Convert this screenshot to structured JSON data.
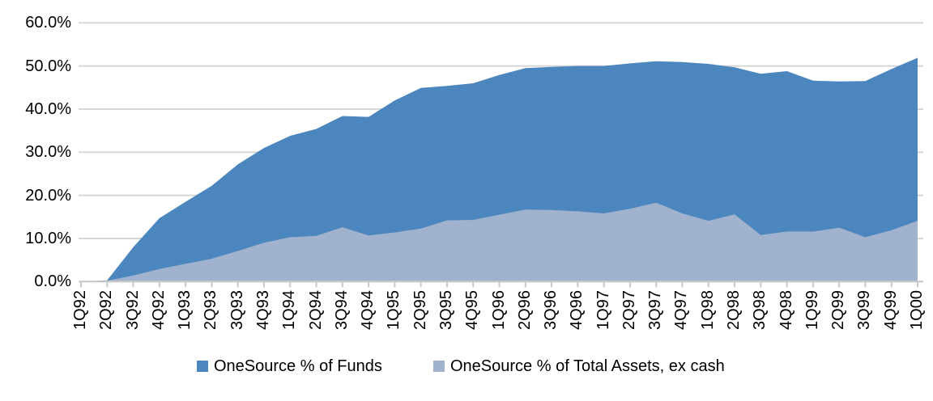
{
  "chart_data": {
    "type": "area",
    "overlapping_series": true,
    "title": "",
    "xlabel": "",
    "ylabel": "",
    "categories": [
      "1Q92",
      "2Q92",
      "3Q92",
      "4Q92",
      "1Q93",
      "2Q93",
      "3Q93",
      "4Q93",
      "1Q94",
      "2Q94",
      "3Q94",
      "4Q94",
      "1Q95",
      "2Q95",
      "3Q95",
      "4Q95",
      "1Q96",
      "2Q96",
      "3Q96",
      "4Q96",
      "1Q97",
      "2Q97",
      "3Q97",
      "4Q97",
      "1Q98",
      "2Q98",
      "3Q98",
      "4Q98",
      "1Q99",
      "2Q99",
      "3Q99",
      "4Q99",
      "1Q00"
    ],
    "series": [
      {
        "name": "OneSource % of Funds",
        "color": "#4c86be",
        "values": [
          0.0,
          0.3,
          8.0,
          14.7,
          18.5,
          22.2,
          27.2,
          31.0,
          33.8,
          35.4,
          38.4,
          38.2,
          42.0,
          44.9,
          45.4,
          46.0,
          47.9,
          49.5,
          49.8,
          50.0,
          50.0,
          50.6,
          51.1,
          50.9,
          50.5,
          49.7,
          48.2,
          48.8,
          46.6,
          46.4,
          46.5,
          49.3,
          51.9
        ]
      },
      {
        "name": "OneSource % of Total Assets, ex cash",
        "color": "#a0b2cd",
        "values": [
          0.0,
          0.2,
          1.4,
          2.9,
          4.1,
          5.3,
          7.1,
          9.0,
          10.3,
          10.6,
          12.6,
          10.7,
          11.4,
          12.3,
          14.2,
          14.3,
          15.5,
          16.7,
          16.6,
          16.3,
          15.8,
          16.9,
          18.3,
          15.8,
          14.1,
          15.6,
          10.8,
          11.6,
          11.6,
          12.5,
          10.3,
          11.9,
          14.1
        ]
      }
    ],
    "ylim": [
      0,
      60
    ],
    "ytick_step": 10,
    "ytick_labels": [
      "0.0%",
      "10.0%",
      "20.0%",
      "30.0%",
      "40.0%",
      "50.0%",
      "60.0%"
    ],
    "grid": true,
    "gridline_color": "#d6d6d6",
    "axis_color": "#c9c9c9",
    "legend_position": "bottom"
  }
}
